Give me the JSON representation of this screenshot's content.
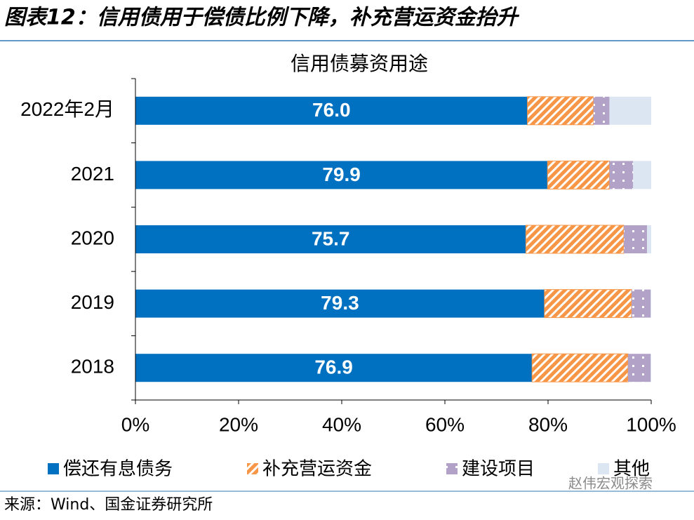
{
  "header": {
    "title": "图表12：信用债用于偿债比例下降，补充营运资金抬升"
  },
  "source": "来源：Wind、国金证券研究所",
  "watermark": "赵伟宏观探索",
  "chart_data": {
    "type": "stacked-barh",
    "title": "信用债募资用途",
    "categories": [
      "2022年2月",
      "2021",
      "2020",
      "2019",
      "2018"
    ],
    "series": [
      {
        "name": "偿还有息债务",
        "color": "#0070c0",
        "values": [
          76.0,
          79.9,
          75.7,
          79.3,
          76.9
        ],
        "value_labels": [
          "76.0",
          "79.9",
          "75.7",
          "79.3",
          "76.9"
        ]
      },
      {
        "name": "补充营运资金",
        "color": "#f79646",
        "values": [
          12.8,
          12.0,
          19.0,
          16.9,
          18.6
        ]
      },
      {
        "name": "建设项目",
        "color": "#b3a2c7",
        "values": [
          3.1,
          4.6,
          4.5,
          3.7,
          4.4
        ]
      },
      {
        "name": "其他",
        "color": "#dce6f2",
        "values": [
          8.1,
          3.5,
          0.8,
          0.1,
          0.1
        ]
      }
    ],
    "xlim": [
      0,
      100
    ],
    "xticks": [
      {
        "value": 0,
        "label": "0%"
      },
      {
        "value": 20,
        "label": "20%"
      },
      {
        "value": 40,
        "label": "40%"
      },
      {
        "value": 60,
        "label": "60%"
      },
      {
        "value": 80,
        "label": "80%"
      },
      {
        "value": 100,
        "label": "100%"
      }
    ],
    "legend": "bottom"
  }
}
